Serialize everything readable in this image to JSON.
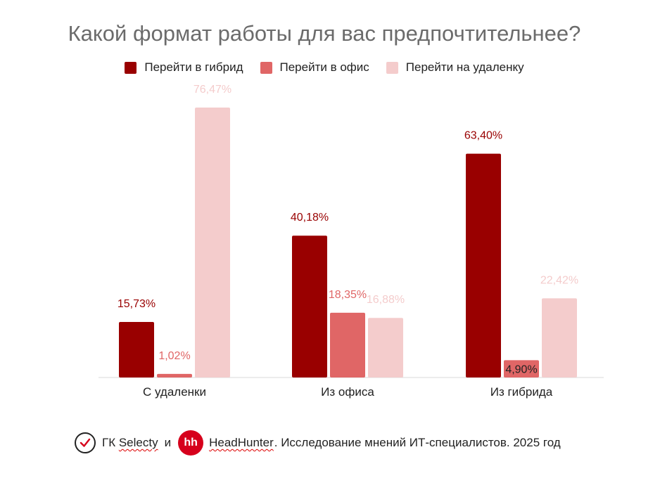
{
  "chart_data": {
    "type": "bar",
    "title": "Какой формат работы для вас предпочтительнее?",
    "categories": [
      "С удаленки",
      "Из офиса",
      "Из гибрида"
    ],
    "series": [
      {
        "name": "Перейти в гибрид",
        "color": "#990000",
        "label_color": "#990000",
        "values": [
          15.73,
          40.18,
          63.4
        ],
        "labels": [
          "15,73%",
          "40,18%",
          "63,40%"
        ]
      },
      {
        "name": "Перейти в офис",
        "color": "#e06666",
        "label_color": "#e06666",
        "values": [
          1.02,
          18.35,
          4.9
        ],
        "labels": [
          "1,02%",
          "18,35%",
          "4,90%"
        ]
      },
      {
        "name": "Перейти на удаленку",
        "color": "#f4cccc",
        "label_color": "#f4cccc",
        "values": [
          76.47,
          16.88,
          22.42
        ],
        "labels": [
          "76,47%",
          "16,88%",
          "22,42%"
        ]
      }
    ],
    "ylim": [
      0,
      80
    ],
    "grid": false,
    "legend_position": "top",
    "xlabel": "",
    "ylabel": ""
  },
  "footer": {
    "org1": "ГК",
    "org1_name": "Selecty",
    "and": "и",
    "hh_logo_text": "hh",
    "org2_name": "HeadHunter",
    "rest": ". Исследование мнений ИТ-специалистов. 2025 год",
    "icons": [
      "checkmark-circle-icon",
      "hh-logo-icon"
    ],
    "hh_color": "#d6001c"
  }
}
